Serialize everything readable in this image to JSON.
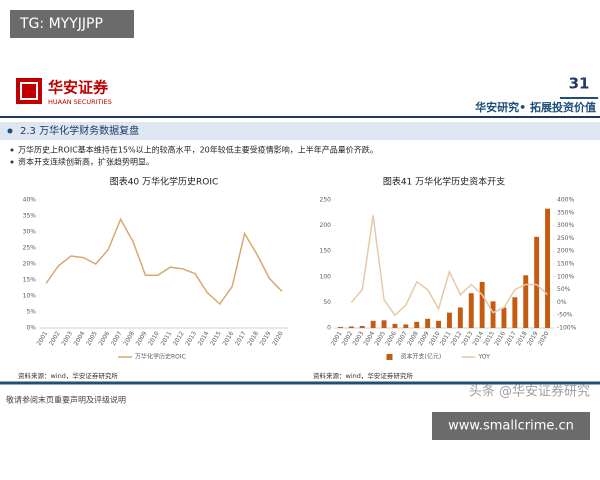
{
  "watermark_top": "TG: MYYJJPP",
  "logo": {
    "name": "华安证券",
    "english": "HUAAN SECURITIES"
  },
  "page_number": "31",
  "slogan": "华安研究• 拓展投资价值",
  "section": "2.3 万华化学财务数据复盘",
  "bullets": [
    "万华历史上ROIC基本维持在15%以上的较高水平，20年较低主要受疫情影响，上半年产品量价齐跌。",
    "资本开支连续创新高，扩张趋势明显。"
  ],
  "chart_data": [
    {
      "type": "line",
      "title": "图表40 万华化学历史ROIC",
      "categories": [
        "2001",
        "2002",
        "2003",
        "2004",
        "2005",
        "2006",
        "2007",
        "2008",
        "2009",
        "2010",
        "2011",
        "2012",
        "2013",
        "2014",
        "2015",
        "2016",
        "2017",
        "2018",
        "2019",
        "2020"
      ],
      "series": [
        {
          "name": "万华化学历史ROIC",
          "color": "#d9a86c",
          "values": [
            14,
            19.5,
            22.5,
            22,
            20,
            24.5,
            34,
            27,
            16.5,
            16.5,
            19,
            18.5,
            17,
            11,
            7.5,
            13,
            29.5,
            23,
            15.5,
            11.5
          ]
        }
      ],
      "ylim": [
        0,
        40
      ],
      "yticks": [
        {
          "value": 0,
          "label": "0%"
        },
        {
          "value": 5,
          "label": "5%"
        },
        {
          "value": 10,
          "label": "10%"
        },
        {
          "value": 15,
          "label": "15%"
        },
        {
          "value": 20,
          "label": "20%"
        },
        {
          "value": 25,
          "label": "25%"
        },
        {
          "value": 30,
          "label": "30%"
        },
        {
          "value": 35,
          "label": "35%"
        },
        {
          "value": 40,
          "label": "40%"
        }
      ],
      "grid": false,
      "legend": "bottom",
      "source": "资料来源：wind，华安证券研究所"
    },
    {
      "type": "bar",
      "title": "图表41 万华化学历史资本开支",
      "categories": [
        "2001",
        "2002",
        "2003",
        "2004",
        "2005",
        "2006",
        "2007",
        "2008",
        "2009",
        "2010",
        "2011",
        "2012",
        "2013",
        "2014",
        "2015",
        "2016",
        "2017",
        "2018",
        "2019",
        "2020"
      ],
      "series": [
        {
          "name": "资本开支(亿元)",
          "color": "#c55a11",
          "values": [
            2,
            3,
            4,
            14,
            15,
            8,
            7,
            12,
            18,
            14,
            30,
            40,
            68,
            90,
            52,
            40,
            60,
            103,
            178,
            233
          ]
        },
        {
          "name": "YOY",
          "type": "line",
          "axis": "y2",
          "color": "#e6c9a8",
          "values": [
            null,
            0,
            50,
            340,
            10,
            -50,
            -10,
            80,
            50,
            -25,
            120,
            30,
            70,
            30,
            -40,
            -20,
            50,
            70,
            70,
            30
          ]
        }
      ],
      "ylim": [
        0,
        250
      ],
      "yticks": [
        0,
        50,
        100,
        150,
        200,
        250
      ],
      "y2lim": [
        -100,
        400
      ],
      "y2ticks": [
        {
          "value": -100,
          "label": "-100%"
        },
        {
          "value": -50,
          "label": "-50%"
        },
        {
          "value": 0,
          "label": "0%"
        },
        {
          "value": 50,
          "label": "50%"
        },
        {
          "value": 100,
          "label": "100%"
        },
        {
          "value": 150,
          "label": "150%"
        },
        {
          "value": 200,
          "label": "200%"
        },
        {
          "value": 250,
          "label": "250%"
        },
        {
          "value": 300,
          "label": "300%"
        },
        {
          "value": 350,
          "label": "350%"
        },
        {
          "value": 400,
          "label": "400%"
        }
      ],
      "grid": false,
      "legend": "bottom",
      "source": "资料来源：wind，华安证券研究所"
    }
  ],
  "disclaimer": "敬请参阅末页重要声明及评级说明",
  "watermark_overlay": "头条 @华安证券研究",
  "watermark_bottom": "www.smallcrime.cn"
}
